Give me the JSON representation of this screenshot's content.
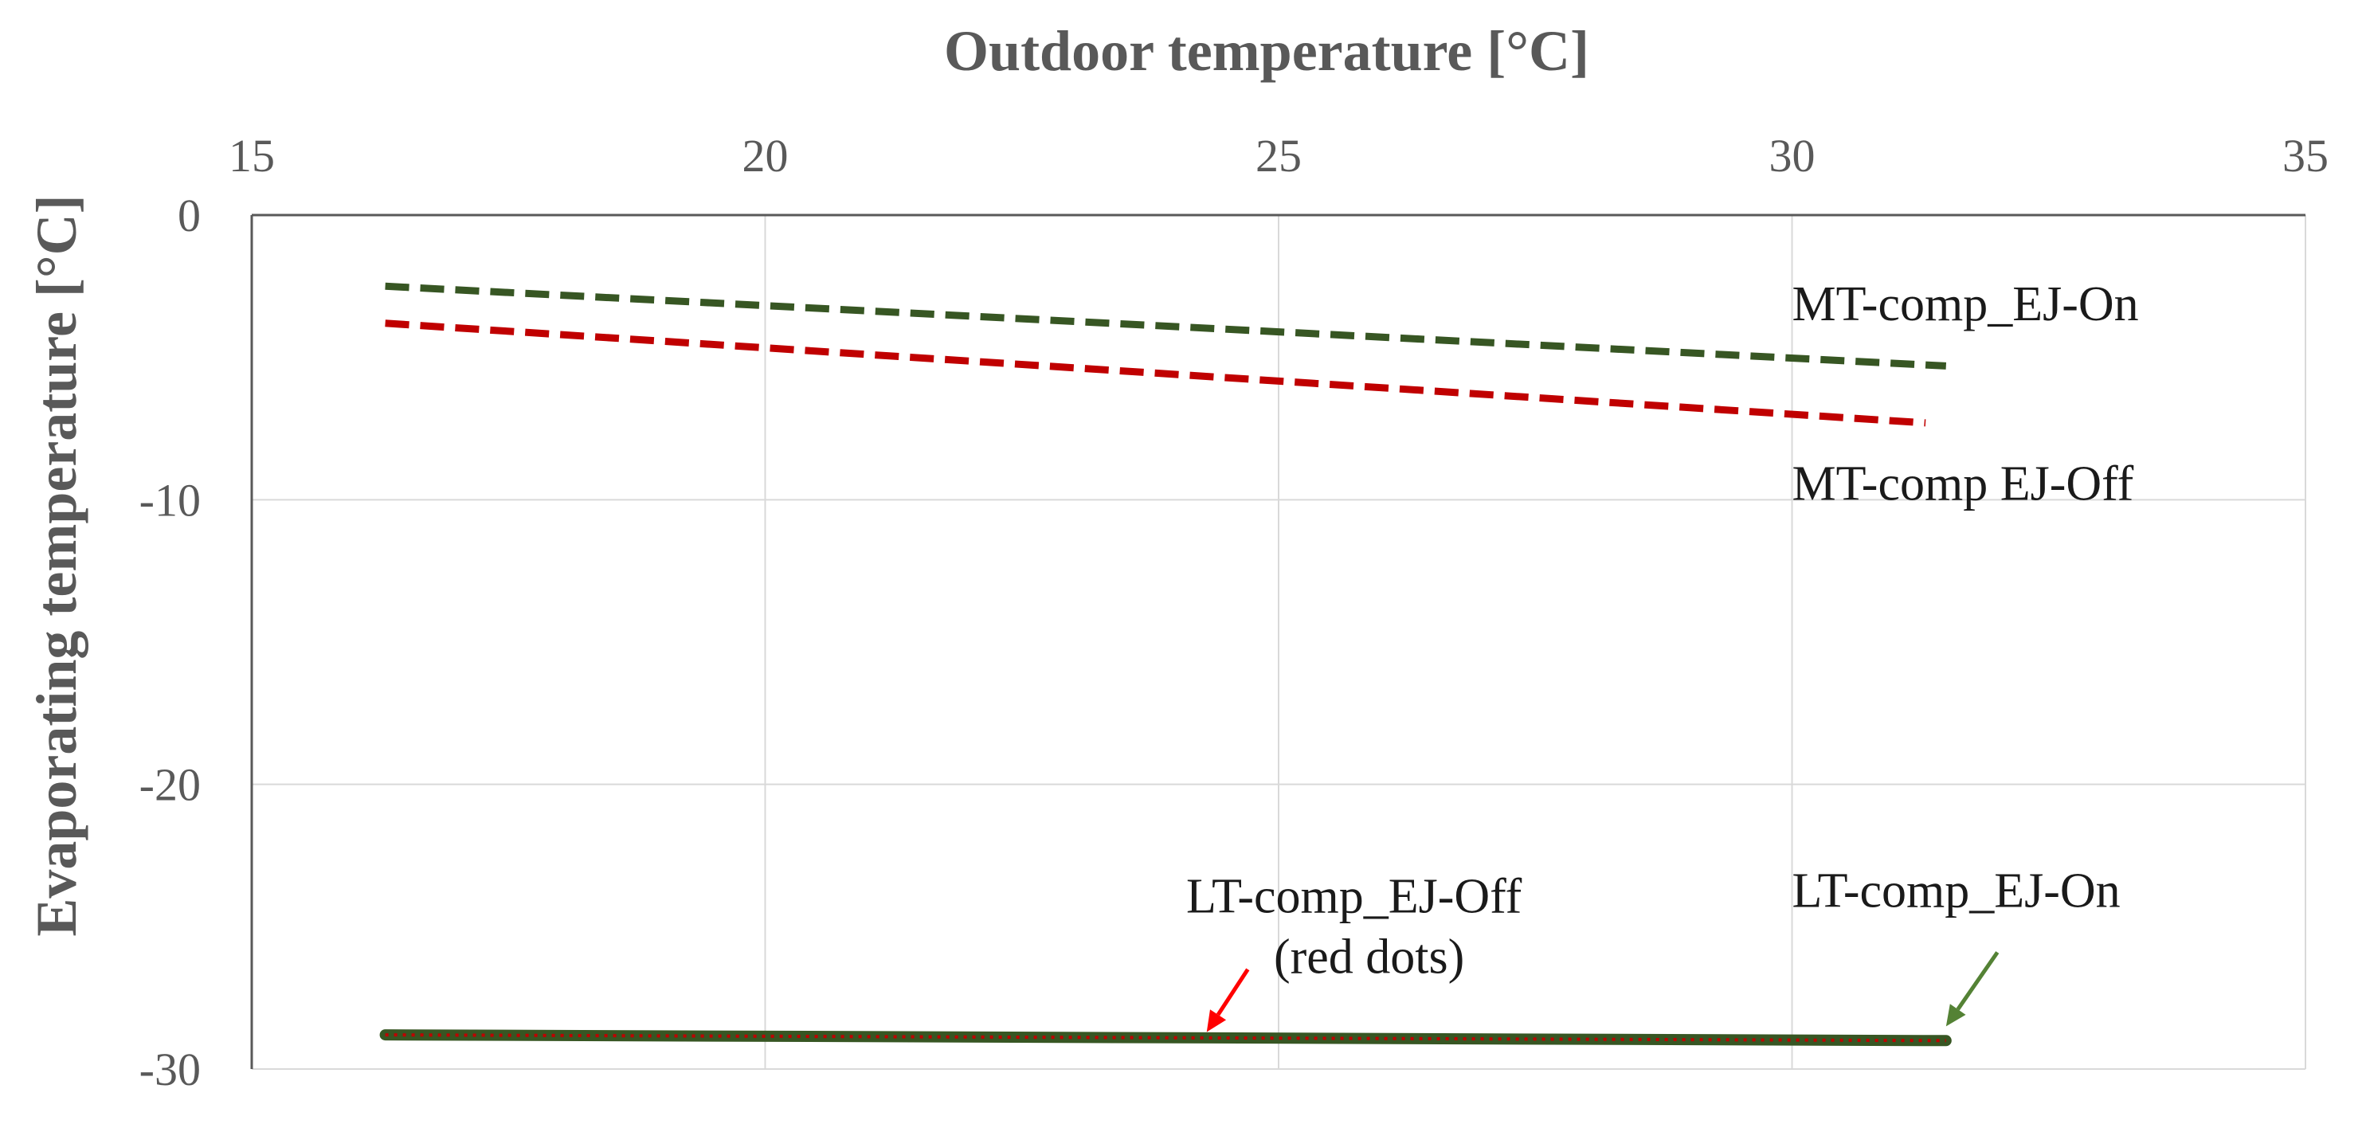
{
  "chart_data": {
    "type": "line",
    "title": "",
    "xlabel": "Outdoor temperature [°C]",
    "ylabel": "Evaporating temperature [°C]",
    "xlim": [
      15,
      35
    ],
    "ylim": [
      -30,
      0
    ],
    "x_axis_position": "top",
    "x_ticks": [
      15,
      20,
      25,
      30,
      35
    ],
    "y_ticks": [
      0,
      -10,
      -20,
      -30
    ],
    "grid": true,
    "colors": {
      "green": "#375623",
      "red": "#C00000",
      "grid": "#D9D9D9",
      "axis": "#595959",
      "arrow_red": "#FF0000",
      "arrow_green": "#548235"
    },
    "series": [
      {
        "name": "MT-comp_EJ-On",
        "style": "dashed",
        "color": "green",
        "x": [
          16.3,
          31.5
        ],
        "y": [
          -2.5,
          -5.3
        ]
      },
      {
        "name": "MT-comp_EJ-Off",
        "style": "dashed",
        "color": "red",
        "x": [
          16.3,
          31.3
        ],
        "y": [
          -3.8,
          -7.3
        ]
      },
      {
        "name": "LT-comp_EJ-On",
        "style": "solid-thick",
        "color": "green",
        "x": [
          16.3,
          31.5
        ],
        "y": [
          -28.8,
          -29.0
        ]
      },
      {
        "name": "LT-comp_EJ-Off",
        "style": "dotted",
        "color": "red",
        "x": [
          16.3,
          31.5
        ],
        "y": [
          -28.8,
          -29.0
        ]
      }
    ],
    "annotations": [
      {
        "id": "mt-on",
        "lines": [
          "MT-comp_EJ-On"
        ],
        "x": 30,
        "y": -3.7
      },
      {
        "id": "mt-off",
        "lines": [
          "MT-comp  EJ-Off"
        ],
        "x": 30,
        "y": -10.0
      },
      {
        "id": "lt-off",
        "lines": [
          "LT-comp_EJ-Off",
          "(red dots)"
        ],
        "x": 24.1,
        "y": -24.5,
        "arrow": {
          "from": [
            24.7,
            -26.5
          ],
          "to": [
            24.3,
            -28.7
          ],
          "color": "arrow_red"
        }
      },
      {
        "id": "lt-on",
        "lines": [
          "LT-comp_EJ-On"
        ],
        "x": 30,
        "y": -24.3,
        "arrow": {
          "from": [
            32.0,
            -25.9
          ],
          "to": [
            31.5,
            -28.5
          ],
          "color": "arrow_green"
        }
      }
    ]
  }
}
